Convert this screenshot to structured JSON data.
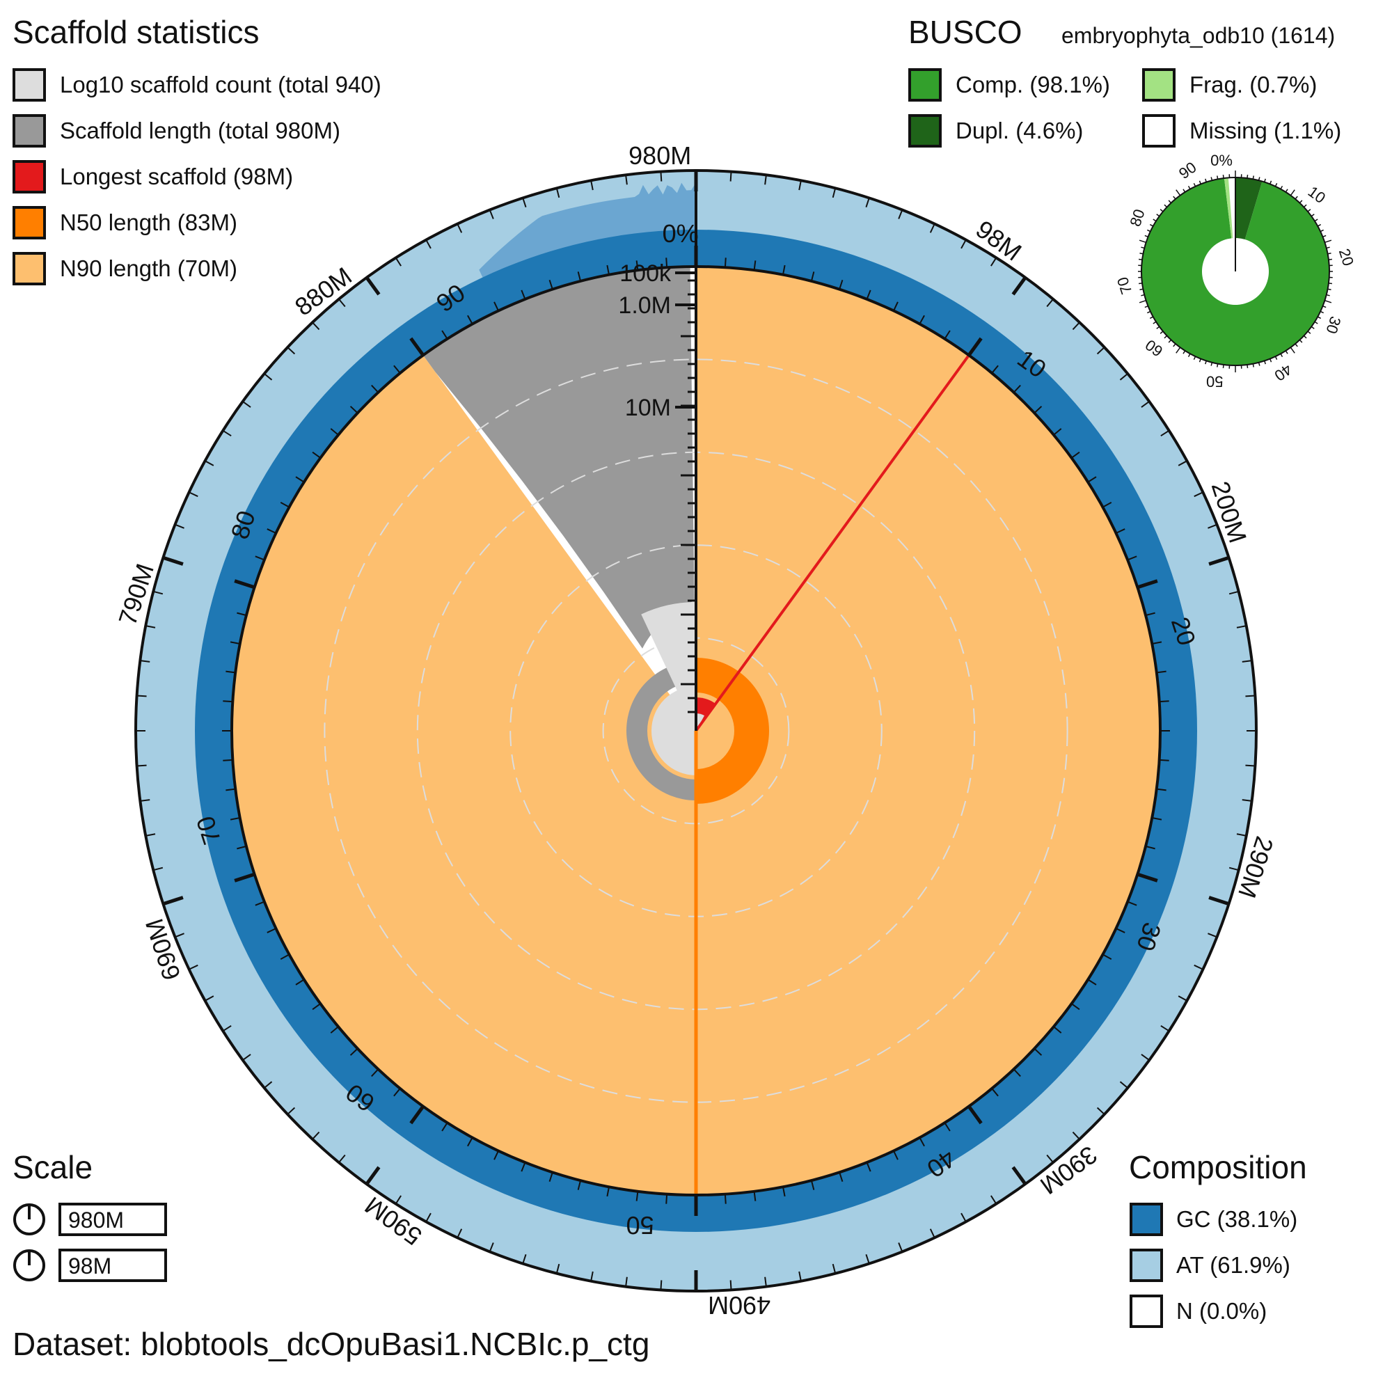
{
  "chart_data": {
    "type": "snail",
    "scaffold_stats": {
      "title": "Scaffold statistics",
      "legend": [
        {
          "label": "Log10 scaffold count (total 940)",
          "color": "#dddddd"
        },
        {
          "label": "Scaffold length (total 980M)",
          "color": "#999999"
        },
        {
          "label": "Longest scaffold (98M)",
          "color": "#e31a1c"
        },
        {
          "label": "N50 length (83M)",
          "color": "#ff7f00"
        },
        {
          "label": "N90 length (70M)",
          "color": "#fdbf6f"
        }
      ],
      "total_length_mb": 980,
      "scaffold_count": 940,
      "longest_mb": 98,
      "n50_mb": 83,
      "n90_mb": 70,
      "span_percent": {
        "longest": 10,
        "n50": 50,
        "n90": 90
      }
    },
    "radial_scale": {
      "labels": [
        "100k",
        "1.0M",
        "10M"
      ]
    },
    "percent_axis": {
      "ticks": [
        "0%",
        "10",
        "20",
        "30",
        "40",
        "50",
        "60",
        "70",
        "80",
        "90"
      ]
    },
    "length_axis": {
      "ticks": [
        "980M",
        "98M",
        "200M",
        "290M",
        "390M",
        "490M",
        "590M",
        "690M",
        "790M",
        "880M"
      ]
    },
    "busco": {
      "title": "BUSCO",
      "lineage": "embryophyta_odb10 (1614)",
      "legend": [
        {
          "label": "Comp. (98.1%)",
          "color": "#33a02c"
        },
        {
          "label": "Frag. (0.7%)",
          "color": "#a3e283"
        },
        {
          "label": "Dupl. (4.6%)",
          "color": "#1f6419"
        },
        {
          "label": "Missing (1.1%)",
          "color": "#ffffff"
        }
      ],
      "complete_pct": 98.1,
      "duplicated_pct": 4.6,
      "fragmented_pct": 0.7,
      "missing_pct": 1.1,
      "ticks": [
        "0%",
        "10",
        "20",
        "30",
        "40",
        "50",
        "60",
        "70",
        "80",
        "90"
      ]
    },
    "scale": {
      "title": "Scale",
      "items": [
        {
          "label": "980M"
        },
        {
          "label": "98M"
        }
      ]
    },
    "composition": {
      "title": "Composition",
      "legend": [
        {
          "label": "GC (38.1%)",
          "color": "#1f78b4"
        },
        {
          "label": "AT (61.9%)",
          "color": "#a6cee3"
        },
        {
          "label": "N (0.0%)",
          "color": "#ffffff"
        }
      ],
      "gc_pct": 38.1,
      "at_pct": 61.9,
      "n_pct": 0.0
    },
    "dataset": "Dataset: blobtools_dcOpuBasi1.NCBIc.p_ctg"
  }
}
